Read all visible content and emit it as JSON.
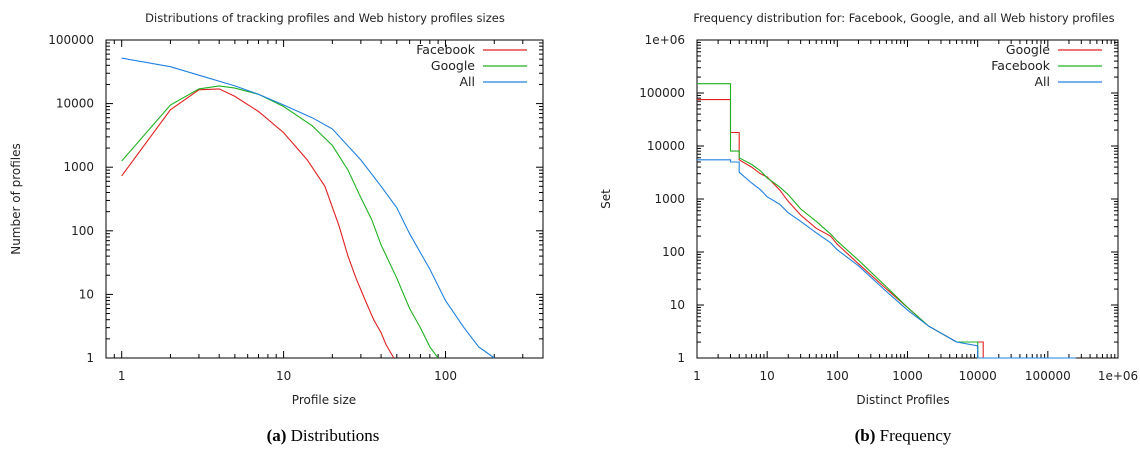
{
  "chart_data": [
    {
      "type": "line",
      "title": "Distributions of tracking profiles and Web history profiles sizes",
      "xlabel": "Profile size",
      "ylabel": "Number of profiles",
      "xscale": "log",
      "yscale": "log",
      "xlim": [
        0.8,
        400
      ],
      "ylim": [
        1,
        100000
      ],
      "xticks": [
        "1",
        "10",
        "100"
      ],
      "yticks": [
        "1",
        "10",
        "100",
        "1000",
        "10000",
        "100000"
      ],
      "legend": "top-right",
      "grid": false,
      "caption_label": "(a)",
      "caption_text": "Distributions",
      "series": [
        {
          "name": "Facebook",
          "color": "#e02020",
          "x": [
            1,
            2,
            3,
            4,
            5,
            7,
            10,
            14,
            18,
            22,
            25,
            28,
            32,
            36,
            40,
            43,
            46,
            48
          ],
          "y": [
            730,
            8000,
            16500,
            17000,
            13000,
            7500,
            3500,
            1300,
            500,
            120,
            40,
            18,
            8,
            4,
            2.5,
            1.6,
            1.2,
            1
          ]
        },
        {
          "name": "Google",
          "color": "#20b020",
          "x": [
            1,
            2,
            3,
            4,
            5,
            7,
            10,
            15,
            20,
            25,
            30,
            35,
            40,
            50,
            60,
            70,
            80,
            90
          ],
          "y": [
            1250,
            9500,
            17000,
            19000,
            17500,
            14000,
            9000,
            4500,
            2200,
            900,
            330,
            150,
            60,
            18,
            6,
            3,
            1.5,
            1
          ]
        },
        {
          "name": "All",
          "color": "#2080e0",
          "x": [
            1,
            2,
            3,
            5,
            7,
            10,
            15,
            20,
            30,
            40,
            50,
            60,
            80,
            100,
            130,
            160,
            200
          ],
          "y": [
            52000,
            38000,
            28000,
            19000,
            14000,
            9500,
            6000,
            4000,
            1300,
            500,
            230,
            90,
            25,
            8,
            3,
            1.5,
            1
          ]
        }
      ]
    },
    {
      "type": "line",
      "title": "Frequency distribution for: Facebook, Google, and all Web history profiles",
      "xlabel": "Distinct Profiles",
      "ylabel": "Set",
      "xscale": "log",
      "yscale": "log",
      "xlim": [
        1,
        1000000
      ],
      "ylim": [
        1,
        1000000
      ],
      "xticks": [
        "1",
        "10",
        "100",
        "1000",
        "10000",
        "100000",
        "1e+06"
      ],
      "yticks": [
        "1",
        "10",
        "100",
        "1000",
        "10000",
        "100000",
        "1e+06"
      ],
      "legend": "top-right",
      "grid": false,
      "caption_label": "(b)",
      "caption_text": "Frequency",
      "series": [
        {
          "name": "Google",
          "color": "#e02020",
          "x": [
            1,
            3,
            3,
            4,
            4,
            6,
            8,
            10,
            15,
            20,
            30,
            50,
            80,
            100,
            200,
            500,
            1000,
            2000,
            5000,
            10000,
            12000,
            12000,
            250000
          ],
          "y": [
            75000,
            75000,
            18000,
            18000,
            5500,
            4000,
            3000,
            2600,
            1500,
            900,
            500,
            280,
            200,
            140,
            60,
            20,
            9,
            4,
            2,
            2,
            2,
            1,
            1
          ]
        },
        {
          "name": "Facebook",
          "color": "#20b020",
          "x": [
            1,
            3,
            3,
            4,
            4,
            6,
            8,
            10,
            15,
            20,
            30,
            50,
            80,
            100,
            200,
            500,
            1000,
            2000,
            5000,
            10000,
            10000
          ],
          "y": [
            150000,
            150000,
            8000,
            8000,
            6000,
            4500,
            3400,
            2500,
            1700,
            1200,
            650,
            380,
            220,
            160,
            70,
            22,
            9,
            4,
            2,
            2,
            1
          ]
        },
        {
          "name": "All",
          "color": "#2080e0",
          "x": [
            1,
            3,
            3,
            4,
            4,
            6,
            8,
            10,
            15,
            20,
            30,
            50,
            80,
            100,
            200,
            500,
            1000,
            2000,
            5000,
            10000,
            10000,
            250000
          ],
          "y": [
            5500,
            5500,
            5000,
            5000,
            3200,
            2000,
            1500,
            1100,
            800,
            550,
            380,
            230,
            150,
            110,
            55,
            18,
            8,
            4,
            2,
            1.7,
            1,
            1
          ]
        }
      ]
    }
  ]
}
